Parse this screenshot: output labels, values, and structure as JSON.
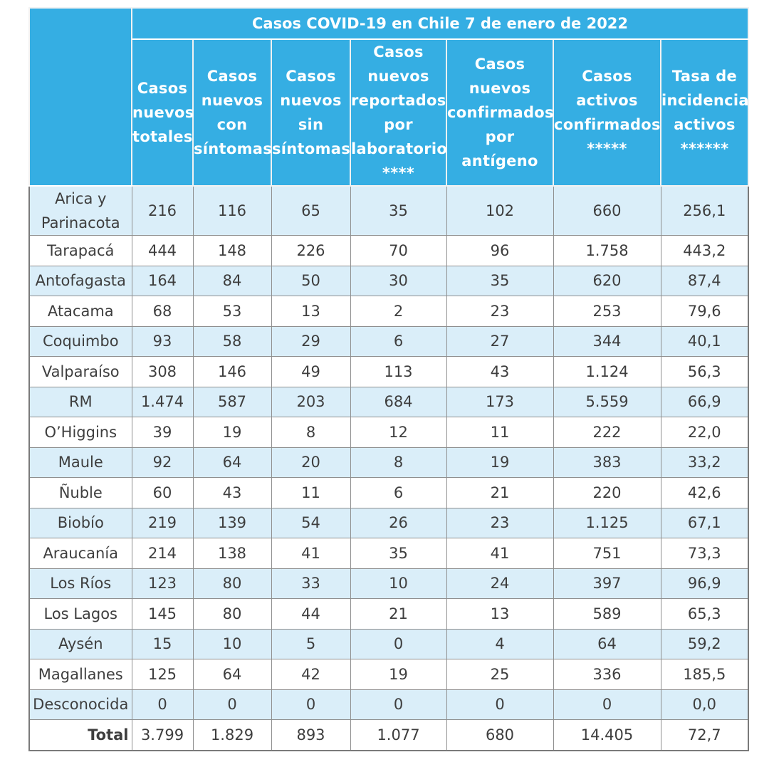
{
  "table": {
    "title": "Casos COVID-19 en Chile 7 de enero de 2022",
    "columns": [
      "Casos nuevos totales",
      "Casos nuevos con síntomas",
      "Casos nuevos sin síntomas",
      "Casos nuevos reportados por laboratorio ****",
      "Casos nuevos confirmados por antígeno",
      "Casos activos confirmados *****",
      "Tasa de incidencia activos ******"
    ],
    "rows": [
      {
        "region": "Arica y Parinacota",
        "values": [
          "216",
          "116",
          "65",
          "35",
          "102",
          "660",
          "256,1"
        ]
      },
      {
        "region": "Tarapacá",
        "values": [
          "444",
          "148",
          "226",
          "70",
          "96",
          "1.758",
          "443,2"
        ]
      },
      {
        "region": "Antofagasta",
        "values": [
          "164",
          "84",
          "50",
          "30",
          "35",
          "620",
          "87,4"
        ]
      },
      {
        "region": "Atacama",
        "values": [
          "68",
          "53",
          "13",
          "2",
          "23",
          "253",
          "79,6"
        ]
      },
      {
        "region": "Coquimbo",
        "values": [
          "93",
          "58",
          "29",
          "6",
          "27",
          "344",
          "40,1"
        ]
      },
      {
        "region": "Valparaíso",
        "values": [
          "308",
          "146",
          "49",
          "113",
          "43",
          "1.124",
          "56,3"
        ]
      },
      {
        "region": "RM",
        "values": [
          "1.474",
          "587",
          "203",
          "684",
          "173",
          "5.559",
          "66,9"
        ]
      },
      {
        "region": "O’Higgins",
        "values": [
          "39",
          "19",
          "8",
          "12",
          "11",
          "222",
          "22,0"
        ]
      },
      {
        "region": "Maule",
        "values": [
          "92",
          "64",
          "20",
          "8",
          "19",
          "383",
          "33,2"
        ]
      },
      {
        "region": "Ñuble",
        "values": [
          "60",
          "43",
          "11",
          "6",
          "21",
          "220",
          "42,6"
        ]
      },
      {
        "region": "Biobío",
        "values": [
          "219",
          "139",
          "54",
          "26",
          "23",
          "1.125",
          "67,1"
        ]
      },
      {
        "region": "Araucanía",
        "values": [
          "214",
          "138",
          "41",
          "35",
          "41",
          "751",
          "73,3"
        ]
      },
      {
        "region": "Los Ríos",
        "values": [
          "123",
          "80",
          "33",
          "10",
          "24",
          "397",
          "96,9"
        ]
      },
      {
        "region": "Los Lagos",
        "values": [
          "145",
          "80",
          "44",
          "21",
          "13",
          "589",
          "65,3"
        ]
      },
      {
        "region": "Aysén",
        "values": [
          "15",
          "10",
          "5",
          "0",
          "4",
          "64",
          "59,2"
        ]
      },
      {
        "region": "Magallanes",
        "values": [
          "125",
          "64",
          "42",
          "19",
          "25",
          "336",
          "185,5"
        ]
      },
      {
        "region": "Desconocida",
        "values": [
          "0",
          "0",
          "0",
          "0",
          "0",
          "0",
          "0,0"
        ]
      },
      {
        "region": "Total",
        "values": [
          "3.799",
          "1.829",
          "893",
          "1.077",
          "680",
          "14.405",
          "72,7"
        ]
      }
    ]
  },
  "colors": {
    "header_bg": "#35aee3",
    "row_alt_bg": "#daeef9",
    "text": "#3e3e3e",
    "border": "#8f8f8f"
  }
}
